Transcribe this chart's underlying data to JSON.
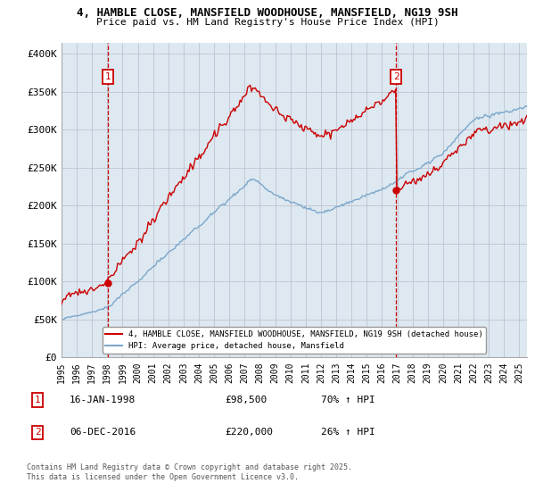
{
  "title_line1": "4, HAMBLE CLOSE, MANSFIELD WOODHOUSE, MANSFIELD, NG19 9SH",
  "title_line2": "Price paid vs. HM Land Registry's House Price Index (HPI)",
  "ylabel_ticks": [
    "£0",
    "£50K",
    "£100K",
    "£150K",
    "£200K",
    "£250K",
    "£300K",
    "£350K",
    "£400K"
  ],
  "ytick_values": [
    0,
    50000,
    100000,
    150000,
    200000,
    250000,
    300000,
    350000,
    400000
  ],
  "ylim": [
    0,
    415000
  ],
  "xlim_start": 1995.0,
  "xlim_end": 2025.5,
  "vline1_x": 1998.04,
  "vline2_x": 2016.92,
  "marker1_x": 1998.04,
  "marker1_y": 98500,
  "marker2_x": 2016.92,
  "marker2_y": 220000,
  "label1_text": "1",
  "label2_text": "2",
  "legend_line1": "4, HAMBLE CLOSE, MANSFIELD WOODHOUSE, MANSFIELD, NG19 9SH (detached house)",
  "legend_line2": "HPI: Average price, detached house, Mansfield",
  "footnote": "Contains HM Land Registry data © Crown copyright and database right 2025.\nThis data is licensed under the Open Government Licence v3.0.",
  "red_color": "#cc0000",
  "blue_color": "#7ba7cc",
  "vline_color": "#cc0000",
  "grid_color": "#bbbbcc",
  "background_color": "#ffffff",
  "plot_bg_color": "#dde8f0",
  "label_box_color": "#cc0000"
}
